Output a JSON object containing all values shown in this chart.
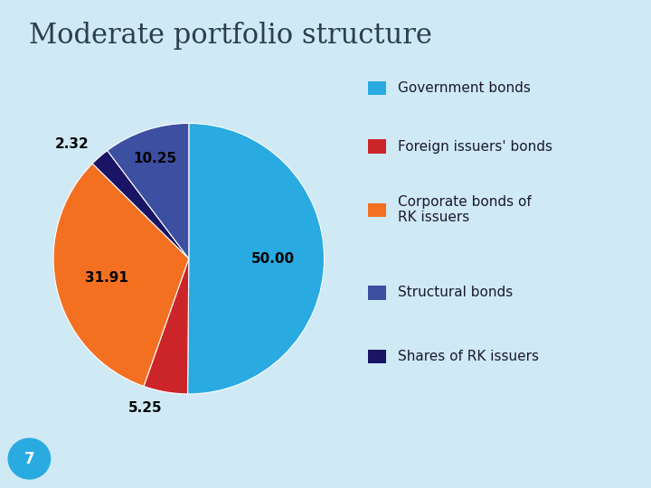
{
  "title": "Moderate portfolio structure",
  "background_color": "#cfe9f5",
  "wedge_sizes": [
    50.0,
    5.25,
    31.91,
    2.32,
    10.25
  ],
  "wedge_labels": [
    "50.00",
    "5.25",
    "31.91",
    "2.32",
    "10.25"
  ],
  "wedge_colors": [
    "#29abe2",
    "#cc2529",
    "#f37021",
    "#1a1464",
    "#3d4fa0"
  ],
  "legend_labels": [
    "Government bonds",
    "Foreign issuers' bonds",
    "Corporate bonds of\nRK issuers",
    "Structural bonds",
    "Shares of RK issuers"
  ],
  "legend_colors": [
    "#29abe2",
    "#cc2529",
    "#f37021",
    "#3d4fa0",
    "#1a1464"
  ],
  "title_fontsize": 22,
  "label_fontsize": 11,
  "legend_fontsize": 11,
  "page_number": "7",
  "startangle": 90
}
